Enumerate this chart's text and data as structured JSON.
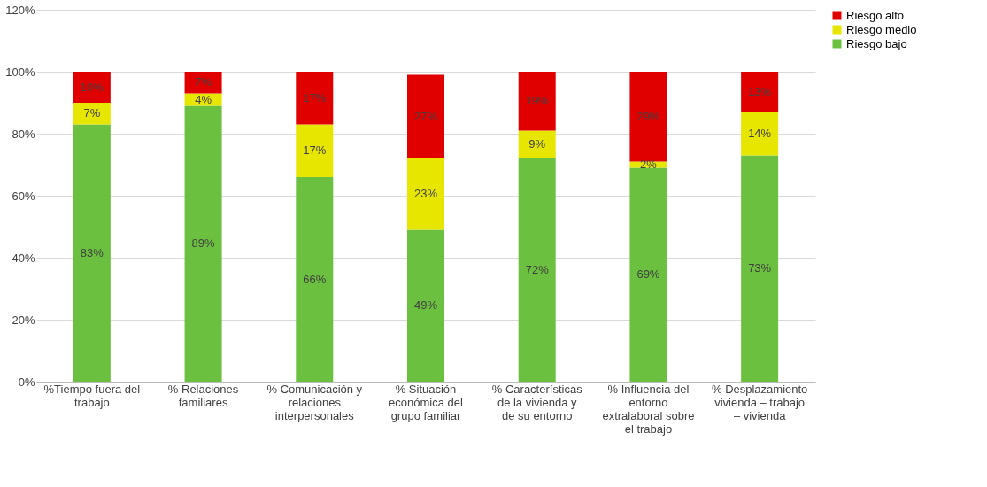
{
  "chart_data": {
    "type": "bar",
    "stacked": true,
    "categories": [
      "%Tiempo fuera del trabajo",
      "% Relaciones familiares",
      "% Comunicación y relaciones interpersonales",
      "% Situación económica del grupo familiar",
      "% Características de la vivienda y de su entorno",
      "%  Influencia del entorno extralaboral sobre el trabajo",
      "% Desplazamiento vivienda – trabajo – vivienda"
    ],
    "series": [
      {
        "name": "Riesgo bajo",
        "color": "#6cc040",
        "values": [
          83,
          89,
          66,
          49,
          72,
          69,
          73
        ],
        "value_labels": [
          "83%",
          "89%",
          "66%",
          "49%",
          "72%",
          "69%",
          "73%"
        ]
      },
      {
        "name": "Riesgo medio",
        "color": "#e6e600",
        "values": [
          7,
          4,
          17,
          23,
          9,
          2,
          14
        ],
        "value_labels": [
          "7%",
          "4%",
          "17%",
          "23%",
          "9%",
          "2%",
          "14%"
        ]
      },
      {
        "name": "Riesgo alto",
        "color": "#e00000",
        "values": [
          10,
          7,
          17,
          27,
          19,
          29,
          13
        ],
        "value_labels": [
          "10%",
          "7%",
          "17%",
          "27%",
          "19%",
          "29%",
          "13%"
        ]
      }
    ],
    "ylim": [
      0,
      120
    ],
    "yticks": [
      {
        "value": 0,
        "label": "0%"
      },
      {
        "value": 20,
        "label": "20%"
      },
      {
        "value": 40,
        "label": "40%"
      },
      {
        "value": 60,
        "label": "60%"
      },
      {
        "value": 80,
        "label": "80%"
      },
      {
        "value": 100,
        "label": "100%"
      },
      {
        "value": 120,
        "label": "120%"
      }
    ],
    "grid": "y",
    "legend": "right"
  }
}
